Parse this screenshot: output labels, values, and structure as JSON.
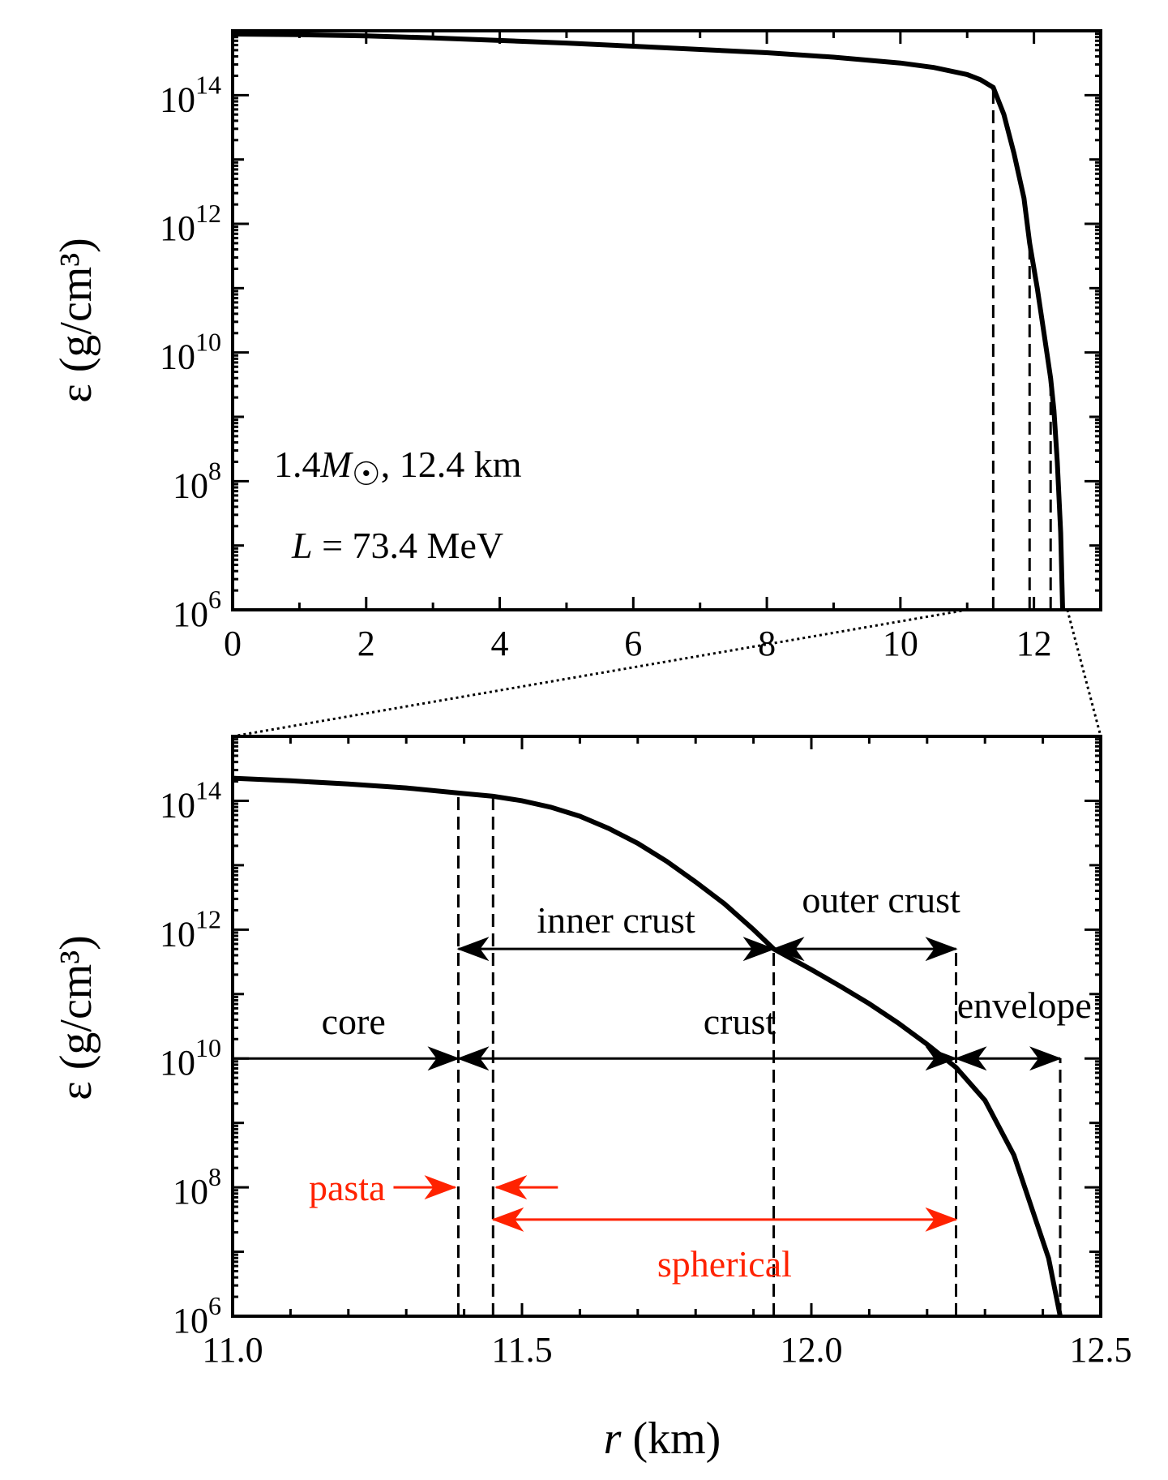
{
  "chart_data": [
    {
      "type": "line",
      "ylabel": "ε (g/cm³)",
      "xlabel": "",
      "xlim": [
        0,
        13
      ],
      "ylim_log10": [
        6,
        15
      ],
      "y_log_scale": true,
      "x_ticks": [
        "0",
        "2",
        "4",
        "6",
        "8",
        "10",
        "12"
      ],
      "y_ticks": [
        {
          "base": "10",
          "exp": "6"
        },
        {
          "base": "10",
          "exp": "8"
        },
        {
          "base": "10",
          "exp": "10"
        },
        {
          "base": "10",
          "exp": "12"
        },
        {
          "base": "10",
          "exp": "14"
        }
      ],
      "annotations": {
        "star_mass": "1.4",
        "star_mass_unit": "M",
        "star_radius": ", 12.4 km",
        "slope_symbol": "L",
        "slope_value": " = 73.4 MeV"
      },
      "series": [
        {
          "x": [
            0,
            1,
            2,
            3,
            4,
            5,
            6,
            7,
            8,
            9,
            10,
            10.5,
            11,
            11.2,
            11.39,
            11.55,
            11.7,
            11.85,
            11.935,
            12.05,
            12.15,
            12.25,
            12.3,
            12.35,
            12.4,
            12.43
          ],
          "y_log10": [
            14.95,
            14.94,
            14.92,
            14.89,
            14.85,
            14.81,
            14.76,
            14.71,
            14.66,
            14.59,
            14.5,
            14.43,
            14.32,
            14.24,
            14.12,
            13.7,
            13.1,
            12.4,
            11.7,
            11.0,
            10.3,
            9.6,
            9.1,
            8.3,
            7.2,
            6.0
          ]
        }
      ],
      "vlines_x": [
        11.39,
        11.935,
        12.25
      ]
    },
    {
      "type": "line",
      "ylabel": "ε (g/cm³)",
      "xlabel_symbol": "r",
      "xlabel_unit": " (km)",
      "xlim": [
        11.0,
        12.5
      ],
      "ylim_log10": [
        6,
        15
      ],
      "y_log_scale": true,
      "x_ticks": [
        "11.0",
        "11.5",
        "12.0",
        "12.5"
      ],
      "y_ticks": [
        {
          "base": "10",
          "exp": "6"
        },
        {
          "base": "10",
          "exp": "8"
        },
        {
          "base": "10",
          "exp": "10"
        },
        {
          "base": "10",
          "exp": "12"
        },
        {
          "base": "10",
          "exp": "14"
        }
      ],
      "series": [
        {
          "x": [
            11.0,
            11.1,
            11.2,
            11.3,
            11.39,
            11.45,
            11.5,
            11.55,
            11.6,
            11.65,
            11.7,
            11.75,
            11.8,
            11.85,
            11.9,
            11.935,
            12.0,
            12.05,
            12.1,
            12.15,
            12.2,
            12.25,
            12.3,
            12.35,
            12.38,
            12.41,
            12.43
          ],
          "y_log10": [
            14.35,
            14.31,
            14.26,
            14.2,
            14.12,
            14.07,
            14.0,
            13.9,
            13.76,
            13.57,
            13.34,
            13.06,
            12.74,
            12.4,
            12.0,
            11.7,
            11.38,
            11.12,
            10.85,
            10.55,
            10.22,
            9.86,
            9.35,
            8.5,
            7.7,
            6.9,
            6.0
          ]
        }
      ],
      "vlines": [
        {
          "x": 11.39,
          "top_log10": 14.12
        },
        {
          "x": 11.45,
          "top_log10": 14.07
        },
        {
          "x": 11.935,
          "top_log10": 11.7
        },
        {
          "x": 12.25,
          "top_log10": 11.7
        },
        {
          "x": 12.43,
          "top_log10": 10.0
        }
      ],
      "ranges": [
        {
          "label": "inner crust",
          "from": 11.39,
          "to": 11.935,
          "y_log10": 11.7,
          "color": "#000000"
        },
        {
          "label": "outer crust",
          "from": 11.935,
          "to": 12.25,
          "y_log10": 11.7,
          "color": "#000000"
        },
        {
          "label": "core",
          "from": 11.0,
          "to": 11.39,
          "y_log10": 10.0,
          "color": "#000000"
        },
        {
          "label": "crust",
          "from": 11.39,
          "to": 12.25,
          "y_log10": 10.0,
          "color": "#000000"
        },
        {
          "label": "envelope",
          "from": 12.25,
          "to": 12.43,
          "y_log10": 10.0,
          "color": "#000000"
        },
        {
          "label": "spherical",
          "from": 11.45,
          "to": 12.25,
          "y_log10": 7.5,
          "color": "#ff2200"
        }
      ],
      "pasta_label": "pasta",
      "pasta_color": "#ff2200",
      "pasta_from": 11.39,
      "pasta_to": 11.45
    }
  ]
}
